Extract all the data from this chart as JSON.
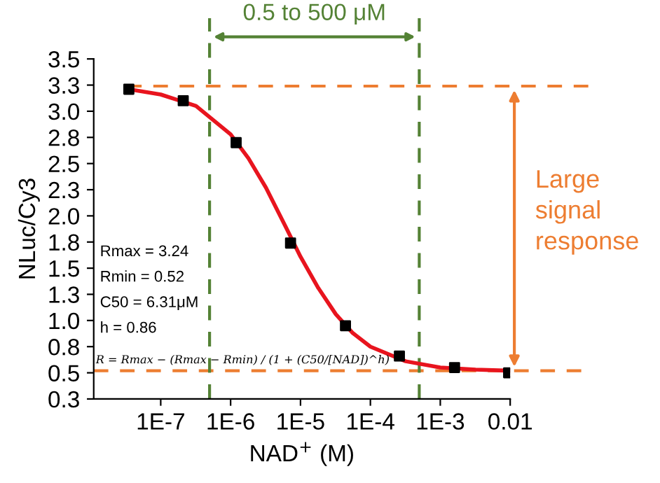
{
  "chart_data": {
    "type": "scatter",
    "xlabel": "NAD$^{+}$ (M)",
    "ylabel": "NLuc/Cy3",
    "log": "x",
    "xlim": [
      1.1e-08,
      0.01
    ],
    "xticks": [
      {
        "value": 1e-07,
        "label": "1E-7"
      },
      {
        "value": 1e-06,
        "label": "1E-6"
      },
      {
        "value": 1e-05,
        "label": "1E-5"
      },
      {
        "value": 0.0001,
        "label": "1E-4"
      },
      {
        "value": 0.001,
        "label": "1E-3"
      },
      0.01
    ],
    "ylim": [
      0.25,
      3.5
    ],
    "yticks": [
      3.5,
      {
        "value": 3.25,
        "label": "3.3"
      },
      {
        "value": 3,
        "label": "3.0"
      },
      {
        "value": 2.75,
        "label": "2.8"
      },
      2.5,
      {
        "value": 2.25,
        "label": "2.3"
      },
      {
        "value": 2,
        "label": "2.0"
      },
      {
        "value": 1.75,
        "label": "1.8"
      },
      1.5,
      {
        "value": 1.25,
        "label": "1.3"
      },
      {
        "value": 1,
        "label": "1.0"
      },
      {
        "value": 0.75,
        "label": "0.8"
      },
      0.5,
      {
        "value": 0.25,
        "label": "0.3"
      }
    ],
    "grid": false,
    "series": [
      {
        "color": "#000000",
        "marker": "square",
        "x": [
          3.5e-08,
          2.1e-07,
          1.2e-06,
          7.2e-06,
          4.4e-05,
          0.00026,
          0.0016,
          0.0095
        ],
        "values": [
          3.21,
          3.1,
          2.7,
          1.74,
          0.95,
          0.66,
          0.55,
          0.5
        ]
      },
      {
        "type": "line",
        "color": "#e8141e",
        "marker": "none",
        "line_style": "solid",
        "x": [
          3.5e-08,
          1e-07,
          3.2e-07,
          1e-06,
          1.8e-06,
          3.2e-06,
          6.3e-06,
          1e-05,
          1.8e-05,
          3.2e-05,
          5.6e-05,
          0.0001,
          0.00032,
          0.001,
          0.0032,
          0.01
        ],
        "values": [
          3.21,
          3.16,
          3.05,
          2.78,
          2.55,
          2.27,
          1.88,
          1.61,
          1.31,
          1.06,
          0.88,
          0.75,
          0.61,
          0.55,
          0.53,
          0.52
        ]
      }
    ],
    "ref_lines": [
      {
        "axis": "y",
        "value": 3.24,
        "color": "#ed7d31",
        "line_style": "dashed"
      },
      {
        "axis": "y",
        "value": 0.52,
        "color": "#ed7d31",
        "line_style": "dashed"
      },
      {
        "axis": "x",
        "value": 5e-07,
        "color": "#548235",
        "line_style": "dashed"
      },
      {
        "axis": "x",
        "value": 0.0005,
        "color": "#548235",
        "line_style": "dashed"
      }
    ],
    "annotations": [
      "Rmax = 3.24",
      "Rmin = 0.52",
      "C50 = 6.31μM",
      "h = 0.86",
      "R = Rmax − (Rmax − Rmin) / (1 + (C50/[NAD])^h)",
      "0.5 to 500 μM",
      "Large\nsignal\nresponse"
    ]
  }
}
